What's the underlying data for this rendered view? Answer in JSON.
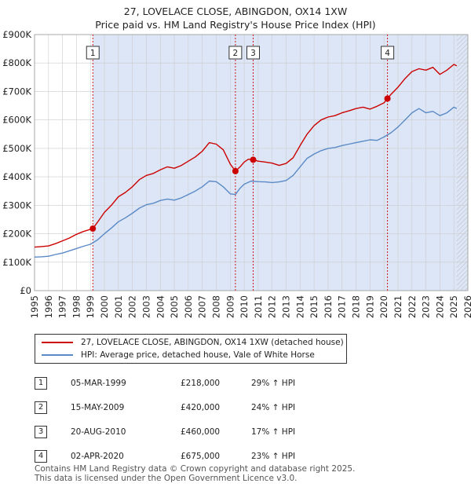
{
  "title_line1": "27, LOVELACE CLOSE, ABINGDON, OX14 1XW",
  "title_line2": "Price paid vs. HM Land Registry's House Price Index (HPI)",
  "colors": {
    "property": "#cc0000",
    "hpi": "#5a8ac6",
    "shade": "#dde6f6",
    "grid": "#ffffff",
    "marker_line": "#cc0000"
  },
  "legend": {
    "property_label": "27, LOVELACE CLOSE, ABINGDON, OX14 1XW (detached house)",
    "hpi_label": "HPI: Average price, detached house, Vale of White Horse"
  },
  "sales": [
    {
      "num": "1",
      "date": "05-MAR-1999",
      "price": "£218,000",
      "hpi": "29% ↑ HPI"
    },
    {
      "num": "2",
      "date": "15-MAY-2009",
      "price": "£420,000",
      "hpi": "24% ↑ HPI"
    },
    {
      "num": "3",
      "date": "20-AUG-2010",
      "price": "£460,000",
      "hpi": "17% ↑ HPI"
    },
    {
      "num": "4",
      "date": "02-APR-2020",
      "price": "£675,000",
      "hpi": "23% ↑ HPI"
    }
  ],
  "footer_line1": "Contains HM Land Registry data © Crown copyright and database right 2025.",
  "footer_line2": "This data is licensed under the Open Government Licence v3.0.",
  "chart_data": {
    "type": "line",
    "title": "27, LOVELACE CLOSE, ABINGDON, OX14 1XW",
    "subtitle": "Price paid vs. HM Land Registry's House Price Index (HPI)",
    "xlim": [
      1995,
      2026
    ],
    "ylim": [
      0,
      900000
    ],
    "x_ticks": [
      1995,
      1996,
      1997,
      1998,
      1999,
      2000,
      2001,
      2002,
      2003,
      2004,
      2005,
      2006,
      2007,
      2008,
      2009,
      2010,
      2011,
      2012,
      2013,
      2014,
      2015,
      2016,
      2017,
      2018,
      2019,
      2020,
      2021,
      2022,
      2023,
      2024,
      2025,
      2026
    ],
    "y_ticks": [
      {
        "value": 0,
        "label": "£0"
      },
      {
        "value": 100000,
        "label": "£100K"
      },
      {
        "value": 200000,
        "label": "£200K"
      },
      {
        "value": 300000,
        "label": "£300K"
      },
      {
        "value": 400000,
        "label": "£400K"
      },
      {
        "value": 500000,
        "label": "£500K"
      },
      {
        "value": 600000,
        "label": "£600K"
      },
      {
        "value": 700000,
        "label": "£700K"
      },
      {
        "value": 800000,
        "label": "£800K"
      },
      {
        "value": 900000,
        "label": "£900K"
      }
    ],
    "shaded_from": 1999.17,
    "hatched_from": 2025.2,
    "sale_markers": [
      {
        "label": "1",
        "x": 1999.17,
        "y": 218000
      },
      {
        "label": "2",
        "x": 2009.37,
        "y": 420000
      },
      {
        "label": "3",
        "x": 2010.64,
        "y": 460000
      },
      {
        "label": "4",
        "x": 2020.25,
        "y": 675000
      }
    ],
    "series": [
      {
        "name": "27, LOVELACE CLOSE, ABINGDON, OX14 1XW (detached house)",
        "x": [
          1995.0,
          1995.5,
          1996.0,
          1996.5,
          1997.0,
          1997.5,
          1998.0,
          1998.5,
          1999.17,
          1999.5,
          2000.0,
          2000.5,
          2001.0,
          2001.5,
          2002.0,
          2002.5,
          2003.0,
          2003.5,
          2004.0,
          2004.5,
          2005.0,
          2005.5,
          2006.0,
          2006.5,
          2007.0,
          2007.5,
          2008.0,
          2008.5,
          2009.0,
          2009.37,
          2009.7,
          2010.0,
          2010.3,
          2010.64,
          2011.0,
          2011.5,
          2012.0,
          2012.5,
          2013.0,
          2013.5,
          2014.0,
          2014.5,
          2015.0,
          2015.5,
          2016.0,
          2016.5,
          2017.0,
          2017.5,
          2018.0,
          2018.5,
          2019.0,
          2019.5,
          2020.0,
          2020.25,
          2020.5,
          2021.0,
          2021.5,
          2022.0,
          2022.5,
          2023.0,
          2023.5,
          2024.0,
          2024.5,
          2025.0,
          2025.2
        ],
        "values": [
          153000,
          155000,
          157000,
          165000,
          175000,
          185000,
          198000,
          208000,
          218000,
          240000,
          275000,
          300000,
          330000,
          345000,
          365000,
          390000,
          405000,
          412000,
          425000,
          435000,
          430000,
          440000,
          455000,
          470000,
          490000,
          520000,
          515000,
          495000,
          445000,
          420000,
          435000,
          452000,
          462000,
          460000,
          455000,
          452000,
          448000,
          440000,
          447000,
          467000,
          510000,
          550000,
          580000,
          600000,
          610000,
          615000,
          625000,
          632000,
          640000,
          645000,
          638000,
          648000,
          660000,
          675000,
          690000,
          715000,
          745000,
          770000,
          780000,
          775000,
          785000,
          760000,
          775000,
          795000,
          790000
        ]
      },
      {
        "name": "HPI: Average price, detached house, Vale of White Horse",
        "x": [
          1995.0,
          1995.5,
          1996.0,
          1996.5,
          1997.0,
          1997.5,
          1998.0,
          1998.5,
          1999.0,
          1999.5,
          2000.0,
          2000.5,
          2001.0,
          2001.5,
          2002.0,
          2002.5,
          2003.0,
          2003.5,
          2004.0,
          2004.5,
          2005.0,
          2005.5,
          2006.0,
          2006.5,
          2007.0,
          2007.5,
          2008.0,
          2008.5,
          2009.0,
          2009.37,
          2009.7,
          2010.0,
          2010.5,
          2011.0,
          2011.5,
          2012.0,
          2012.5,
          2013.0,
          2013.5,
          2014.0,
          2014.5,
          2015.0,
          2015.5,
          2016.0,
          2016.5,
          2017.0,
          2017.5,
          2018.0,
          2018.5,
          2019.0,
          2019.5,
          2020.0,
          2020.5,
          2021.0,
          2021.5,
          2022.0,
          2022.5,
          2023.0,
          2023.5,
          2024.0,
          2024.5,
          2025.0,
          2025.2
        ],
        "values": [
          118000,
          119000,
          121000,
          127000,
          132000,
          140000,
          148000,
          156000,
          163000,
          178000,
          200000,
          220000,
          242000,
          256000,
          272000,
          290000,
          302000,
          307000,
          317000,
          322000,
          318000,
          326000,
          338000,
          350000,
          365000,
          385000,
          383000,
          365000,
          340000,
          338000,
          360000,
          374000,
          385000,
          383000,
          382000,
          380000,
          382000,
          387000,
          405000,
          435000,
          465000,
          480000,
          492000,
          500000,
          503000,
          510000,
          515000,
          520000,
          525000,
          530000,
          528000,
          540000,
          555000,
          575000,
          600000,
          625000,
          640000,
          625000,
          630000,
          615000,
          625000,
          645000,
          640000
        ]
      }
    ]
  }
}
